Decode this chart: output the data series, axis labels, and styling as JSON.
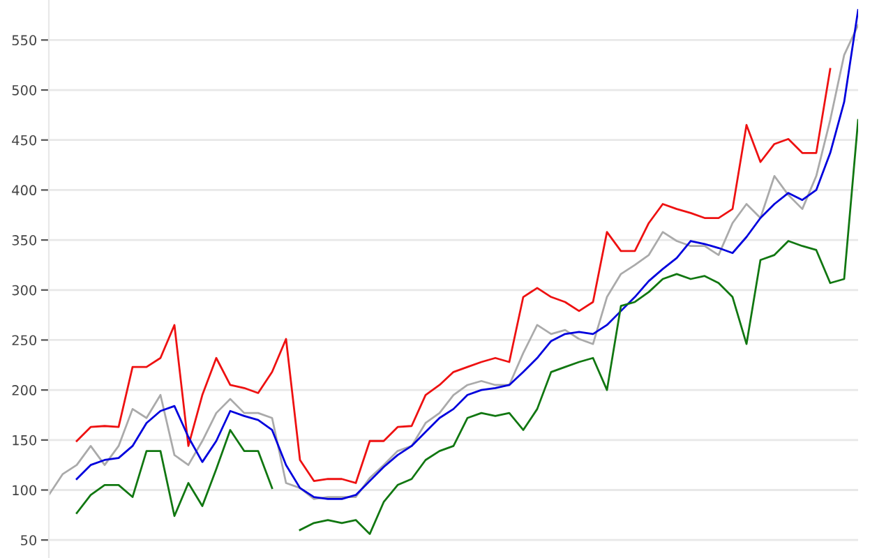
{
  "chart_data": {
    "type": "line",
    "categories": [
      null,
      null,
      null,
      null,
      null,
      null,
      null,
      null,
      null,
      null,
      null,
      null,
      null,
      null,
      null,
      null,
      null,
      null,
      null,
      null,
      null,
      null,
      null,
      null,
      null,
      null,
      null,
      null,
      null,
      null,
      null,
      null,
      null,
      null,
      null,
      null,
      null,
      null,
      null,
      null,
      null,
      null,
      null,
      null,
      null,
      null,
      null,
      null,
      null,
      null,
      null,
      null,
      null,
      null,
      null,
      null,
      null,
      null,
      null
    ],
    "series": [
      {
        "color": "#aaaaaa",
        "values": [
          95,
          116,
          125,
          144,
          125,
          144,
          181,
          172,
          195,
          135,
          125,
          149,
          177,
          191,
          177,
          177,
          172,
          107,
          102,
          91,
          93,
          93,
          93,
          112,
          125,
          139,
          144,
          167,
          177,
          195,
          205,
          209,
          205,
          205,
          237,
          265,
          256,
          260,
          251,
          246,
          293,
          316,
          325,
          335,
          358,
          349,
          344,
          344,
          335,
          367,
          386,
          372,
          414,
          395,
          381,
          414,
          470,
          535,
          565
        ]
      },
      {
        "color": "#ee1111",
        "values": [
          null,
          null,
          149,
          163,
          164,
          163,
          223,
          223,
          232,
          265,
          144,
          195,
          232,
          205,
          202,
          197,
          218,
          251,
          130,
          109,
          111,
          111,
          107,
          149,
          149,
          163,
          164,
          195,
          205,
          218,
          223,
          228,
          232,
          228,
          293,
          302,
          293,
          288,
          279,
          288,
          358,
          339,
          339,
          367,
          386,
          381,
          377,
          372,
          372,
          381,
          465,
          428,
          446,
          451,
          437,
          437,
          521,
          null,
          null
        ]
      },
      {
        "color": "#0000dd",
        "values": [
          null,
          null,
          111,
          125,
          130,
          132,
          144,
          167,
          179,
          184,
          153,
          128,
          149,
          179,
          174,
          170,
          160,
          125,
          102,
          93,
          91,
          91,
          95,
          109,
          123,
          135,
          144,
          158,
          172,
          181,
          195,
          200,
          202,
          205,
          218,
          232,
          249,
          256,
          258,
          256,
          265,
          279,
          293,
          309,
          321,
          332,
          349,
          346,
          342,
          337,
          353,
          372,
          386,
          397,
          390,
          400,
          437,
          488,
          580
        ]
      },
      {
        "color": "#117711",
        "values": [
          null,
          null,
          77,
          95,
          105,
          105,
          93,
          139,
          139,
          74,
          107,
          84,
          121,
          160,
          139,
          139,
          102,
          null,
          60,
          67,
          70,
          67,
          70,
          56,
          88,
          105,
          111,
          130,
          139,
          144,
          172,
          177,
          174,
          177,
          160,
          181,
          218,
          223,
          228,
          232,
          200,
          284,
          288,
          298,
          311,
          316,
          311,
          314,
          307,
          293,
          246,
          330,
          335,
          349,
          344,
          340,
          307,
          311,
          470
        ]
      }
    ],
    "ylim": [
      32,
      590
    ],
    "yticks": [
      50,
      100,
      150,
      200,
      250,
      300,
      350,
      400,
      450,
      500,
      550
    ],
    "grid": "y"
  }
}
